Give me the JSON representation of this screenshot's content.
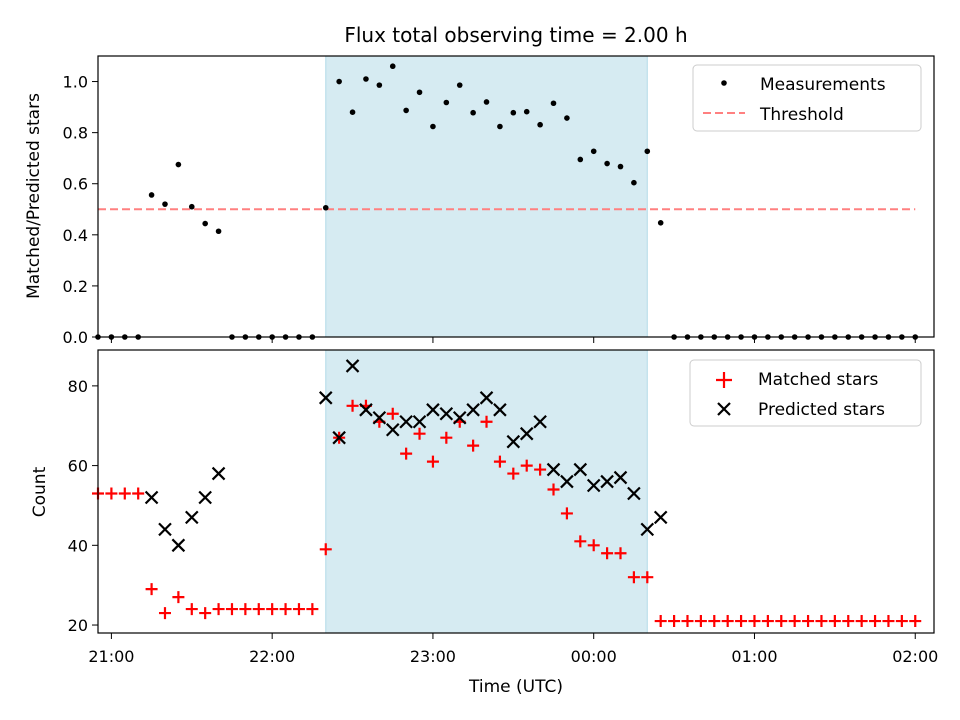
{
  "figure": {
    "title": "Flux total observing time = 2.00 h",
    "xlabel": "Time (UTC)"
  },
  "chart_data": [
    {
      "type": "scatter",
      "name": "ratio-panel",
      "ylabel": "Matched/Predicted stars",
      "xlim": [
        "20:55",
        "02:07"
      ],
      "ylim": [
        0,
        1.1
      ],
      "yticks": [
        0.0,
        0.2,
        0.4,
        0.6,
        0.8,
        1.0
      ],
      "ytick_labels": [
        "0.0",
        "0.2",
        "0.4",
        "0.6",
        "0.8",
        "1.0"
      ],
      "shaded_span": [
        "22:20",
        "00:20"
      ],
      "shade_color": "#add8e6",
      "legend_position": "upper right",
      "series": [
        {
          "name": "Measurements",
          "kind": "points",
          "color": "#000000",
          "x": [
            "20:55",
            "21:00",
            "21:05",
            "21:10",
            "21:15",
            "21:20",
            "21:25",
            "21:30",
            "21:35",
            "21:40",
            "21:45",
            "21:50",
            "21:55",
            "22:00",
            "22:05",
            "22:10",
            "22:15",
            "22:20",
            "22:25",
            "22:30",
            "22:35",
            "22:40",
            "22:45",
            "22:50",
            "22:55",
            "23:00",
            "23:05",
            "23:10",
            "23:15",
            "23:20",
            "23:25",
            "23:30",
            "23:35",
            "23:40",
            "23:45",
            "23:50",
            "23:55",
            "00:00",
            "00:05",
            "00:10",
            "00:15",
            "00:20",
            "00:25",
            "00:30",
            "00:35",
            "00:40",
            "00:45",
            "00:50",
            "00:55",
            "01:00",
            "01:05",
            "01:10",
            "01:15",
            "01:20",
            "01:25",
            "01:30",
            "01:35",
            "01:40",
            "01:45",
            "01:50",
            "01:55",
            "02:00"
          ],
          "y": [
            0,
            0,
            0,
            0,
            0.556,
            0.52,
            0.675,
            0.51,
            0.444,
            0.414,
            0,
            0,
            0,
            0,
            0,
            0,
            0,
            0.506,
            1.0,
            0.88,
            1.01,
            0.986,
            1.06,
            0.887,
            0.958,
            0.824,
            0.918,
            0.986,
            0.878,
            0.92,
            0.824,
            0.878,
            0.882,
            0.831,
            0.915,
            0.857,
            0.695,
            0.727,
            0.679,
            0.667,
            0.604,
            0.727,
            0.447,
            0,
            0,
            0,
            0,
            0,
            0,
            0,
            0,
            0,
            0,
            0,
            0,
            0,
            0,
            0,
            0,
            0,
            0,
            0
          ]
        },
        {
          "name": "Threshold",
          "kind": "dashed-line",
          "color": "#ff8080",
          "x": [
            "20:55",
            "02:00"
          ],
          "y": [
            0.5,
            0.5
          ]
        }
      ]
    },
    {
      "type": "scatter",
      "name": "count-panel",
      "ylabel": "Count",
      "xlim": [
        "20:55",
        "02:07"
      ],
      "ylim": [
        18,
        89
      ],
      "yticks": [
        20,
        40,
        60,
        80
      ],
      "ytick_labels": [
        "20",
        "40",
        "60",
        "80"
      ],
      "xticks": [
        "21:00",
        "22:00",
        "23:00",
        "00:00",
        "01:00",
        "02:00"
      ],
      "shaded_span": [
        "22:20",
        "00:20"
      ],
      "shade_color": "#add8e6",
      "legend_position": "upper right",
      "series": [
        {
          "name": "Matched stars",
          "marker": "+",
          "color": "#ff0000",
          "x": [
            "20:55",
            "21:00",
            "21:05",
            "21:10",
            "21:15",
            "21:20",
            "21:25",
            "21:30",
            "21:35",
            "21:40",
            "21:45",
            "21:50",
            "21:55",
            "22:00",
            "22:05",
            "22:10",
            "22:15",
            "22:20",
            "22:25",
            "22:30",
            "22:35",
            "22:40",
            "22:45",
            "22:50",
            "22:55",
            "23:00",
            "23:05",
            "23:10",
            "23:15",
            "23:20",
            "23:25",
            "23:30",
            "23:35",
            "23:40",
            "23:45",
            "23:50",
            "23:55",
            "00:00",
            "00:05",
            "00:10",
            "00:15",
            "00:20",
            "00:25",
            "00:30",
            "00:35",
            "00:40",
            "00:45",
            "00:50",
            "00:55",
            "01:00",
            "01:05",
            "01:10",
            "01:15",
            "01:20",
            "01:25",
            "01:30",
            "01:35",
            "01:40",
            "01:45",
            "01:50",
            "01:55",
            "02:00"
          ],
          "y": [
            53,
            53,
            53,
            53,
            29,
            23,
            27,
            24,
            23,
            24,
            24,
            24,
            24,
            24,
            24,
            24,
            24,
            39,
            67,
            75,
            75,
            71,
            73,
            63,
            68,
            61,
            67,
            71,
            65,
            71,
            61,
            58,
            60,
            59,
            54,
            48,
            41,
            40,
            38,
            38,
            32,
            32,
            21,
            21,
            21,
            21,
            21,
            21,
            21,
            21,
            21,
            21,
            21,
            21,
            21,
            21,
            21,
            21,
            21,
            21,
            21,
            21
          ]
        },
        {
          "name": "Predicted stars",
          "marker": "x",
          "color": "#000000",
          "x": [
            "21:15",
            "21:20",
            "21:25",
            "21:30",
            "21:35",
            "21:40",
            "22:20",
            "22:25",
            "22:30",
            "22:35",
            "22:40",
            "22:45",
            "22:50",
            "22:55",
            "23:00",
            "23:05",
            "23:10",
            "23:15",
            "23:20",
            "23:25",
            "23:30",
            "23:35",
            "23:40",
            "23:45",
            "23:50",
            "23:55",
            "00:00",
            "00:05",
            "00:10",
            "00:15",
            "00:20",
            "00:25"
          ],
          "y": [
            52,
            44,
            40,
            47,
            52,
            58,
            77,
            67,
            85,
            74,
            72,
            69,
            71,
            71,
            74,
            73,
            72,
            74,
            77,
            74,
            66,
            68,
            71,
            59,
            56,
            59,
            55,
            56,
            57,
            53,
            44,
            47
          ]
        }
      ]
    }
  ]
}
